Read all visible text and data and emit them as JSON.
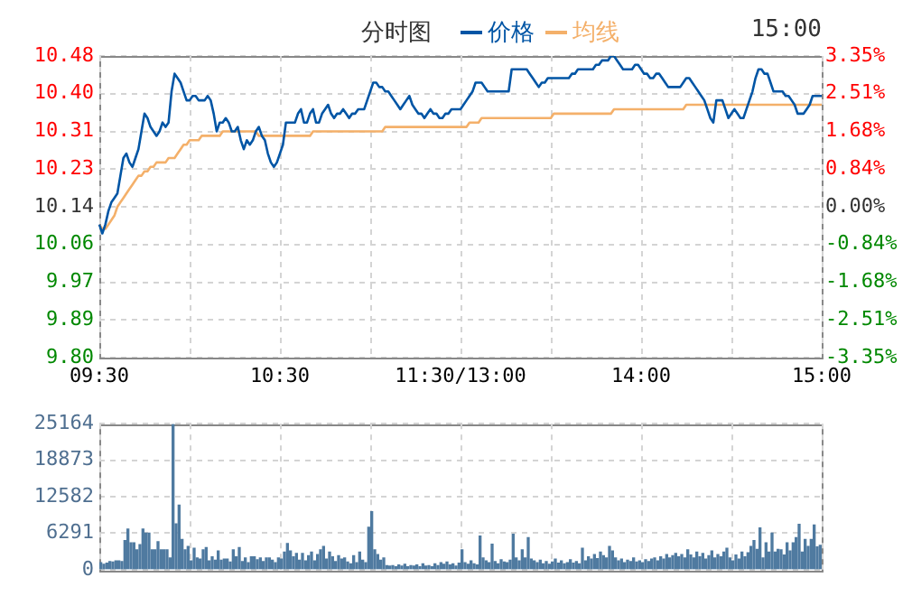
{
  "chart_data": [
    {
      "type": "line",
      "title": "分时图",
      "annotations": [
        "15:00"
      ],
      "legend": "top",
      "grid": true,
      "marker": "none",
      "line_style": "solid",
      "categories": [
        "09:30",
        null,
        null,
        null,
        null,
        null,
        null,
        null,
        null,
        null,
        null,
        null,
        null,
        null,
        null,
        null,
        null,
        null,
        null,
        null,
        null,
        null,
        null,
        null,
        null,
        null,
        null,
        null,
        null,
        null,
        null,
        null,
        null,
        null,
        null,
        null,
        null,
        null,
        null,
        null,
        null,
        null,
        null,
        null,
        null,
        null,
        null,
        null,
        null,
        null,
        null,
        null,
        null,
        null,
        null,
        null,
        null,
        null,
        null,
        null,
        "10:30",
        null,
        null,
        null,
        null,
        null,
        null,
        null,
        null,
        null,
        null,
        null,
        null,
        null,
        null,
        null,
        null,
        null,
        null,
        null,
        null,
        null,
        null,
        null,
        null,
        null,
        null,
        null,
        null,
        null,
        null,
        null,
        null,
        null,
        null,
        null,
        null,
        null,
        null,
        null,
        null,
        null,
        null,
        null,
        null,
        null,
        null,
        null,
        null,
        null,
        null,
        null,
        null,
        null,
        null,
        null,
        null,
        null,
        null,
        null,
        "11:30/13:00",
        null,
        null,
        null,
        null,
        null,
        null,
        null,
        null,
        null,
        null,
        null,
        null,
        null,
        null,
        null,
        null,
        null,
        null,
        null,
        null,
        null,
        null,
        null,
        null,
        null,
        null,
        null,
        null,
        null,
        null,
        null,
        null,
        null,
        null,
        null,
        null,
        null,
        null,
        null,
        null,
        null,
        null,
        null,
        null,
        null,
        null,
        null,
        null,
        null,
        null,
        null,
        null,
        null,
        null,
        null,
        null,
        null,
        null,
        null,
        "14:00",
        null,
        null,
        null,
        null,
        null,
        null,
        null,
        null,
        null,
        null,
        null,
        null,
        null,
        null,
        null,
        null,
        null,
        null,
        null,
        null,
        null,
        null,
        null,
        null,
        null,
        null,
        null,
        null,
        null,
        null,
        null,
        null,
        null,
        null,
        null,
        null,
        null,
        null,
        null,
        null,
        null,
        null,
        null,
        null,
        null,
        null,
        null,
        null,
        null,
        null,
        null,
        null,
        null,
        null,
        null,
        null,
        null,
        null,
        null,
        "15:00"
      ],
      "ylim": [
        9.8,
        10.48
      ],
      "yticks": [
        10.48,
        {
          "value": 10.395,
          "label": "10.40"
        },
        10.31,
        {
          "value": 10.225,
          "label": "10.23"
        },
        10.14,
        {
          "value": 10.055,
          "label": "10.06"
        },
        9.97,
        {
          "value": 9.885,
          "label": "9.89"
        },
        {
          "value": 9.8,
          "label": "9.80"
        }
      ],
      "y2lim": [
        -3.35,
        3.35
      ],
      "y2ticks": [
        {
          "value": 3.35,
          "label": "3.35%"
        },
        {
          "value": 2.5125,
          "label": "2.51%"
        },
        {
          "value": 1.675,
          "label": "1.68%"
        },
        {
          "value": 0.8375,
          "label": "0.84%"
        },
        {
          "value": 0,
          "label": "0.00%"
        },
        {
          "value": -0.8375,
          "label": "-0.84%"
        },
        {
          "value": -1.675,
          "label": "-1.68%"
        },
        {
          "value": -2.5125,
          "label": "-2.51%"
        },
        {
          "value": -3.35,
          "label": "-3.35%"
        }
      ],
      "series": [
        {
          "name": "价格",
          "color": "#0055a5",
          "values": [
            10.1,
            10.08,
            10.1,
            10.13,
            10.15,
            10.16,
            10.17,
            10.21,
            10.25,
            10.26,
            10.24,
            10.23,
            10.25,
            10.27,
            10.31,
            10.35,
            10.34,
            10.32,
            10.31,
            10.3,
            10.31,
            10.33,
            10.32,
            10.33,
            10.4,
            10.44,
            10.43,
            10.42,
            10.4,
            10.38,
            10.38,
            10.39,
            10.39,
            10.38,
            10.38,
            10.38,
            10.39,
            10.38,
            10.35,
            10.31,
            10.33,
            10.33,
            10.34,
            10.33,
            10.31,
            10.31,
            10.32,
            10.29,
            10.27,
            10.29,
            10.28,
            10.29,
            10.31,
            10.32,
            10.3,
            10.29,
            10.26,
            10.24,
            10.23,
            10.24,
            10.26,
            10.28,
            10.33,
            10.33,
            10.33,
            10.33,
            10.35,
            10.36,
            10.33,
            10.33,
            10.35,
            10.36,
            10.33,
            10.33,
            10.35,
            10.36,
            10.37,
            10.35,
            10.34,
            10.35,
            10.35,
            10.36,
            10.35,
            10.34,
            10.35,
            10.35,
            10.36,
            10.36,
            10.36,
            10.38,
            10.4,
            10.42,
            10.42,
            10.41,
            10.41,
            10.4,
            10.4,
            10.39,
            10.38,
            10.37,
            10.36,
            10.37,
            10.38,
            10.39,
            10.37,
            10.36,
            10.35,
            10.35,
            10.34,
            10.35,
            10.36,
            10.35,
            10.35,
            10.34,
            10.34,
            10.35,
            10.35,
            10.36,
            10.36,
            10.36,
            10.36,
            10.37,
            10.38,
            10.39,
            10.4,
            10.42,
            10.42,
            10.42,
            10.41,
            10.4,
            10.4,
            10.4,
            10.4,
            10.4,
            10.4,
            10.4,
            10.4,
            10.45,
            10.45,
            10.45,
            10.45,
            10.45,
            10.45,
            10.44,
            10.43,
            10.42,
            10.41,
            10.42,
            10.42,
            10.43,
            10.43,
            10.43,
            10.43,
            10.43,
            10.43,
            10.43,
            10.43,
            10.44,
            10.44,
            10.45,
            10.45,
            10.45,
            10.45,
            10.45,
            10.45,
            10.46,
            10.46,
            10.47,
            10.47,
            10.47,
            10.48,
            10.48,
            10.47,
            10.46,
            10.45,
            10.45,
            10.45,
            10.45,
            10.46,
            10.46,
            10.45,
            10.44,
            10.44,
            10.43,
            10.43,
            10.44,
            10.44,
            10.43,
            10.42,
            10.41,
            10.41,
            10.41,
            10.41,
            10.41,
            10.42,
            10.43,
            10.43,
            10.42,
            10.41,
            10.4,
            10.39,
            10.38,
            10.36,
            10.34,
            10.33,
            10.38,
            10.38,
            10.38,
            10.36,
            10.34,
            10.35,
            10.36,
            10.35,
            10.34,
            10.34,
            10.36,
            10.38,
            10.4,
            10.43,
            10.45,
            10.45,
            10.44,
            10.44,
            10.42,
            10.4,
            10.4,
            10.4,
            10.4,
            10.39,
            10.39,
            10.38,
            10.37,
            10.35,
            10.35,
            10.35,
            10.36,
            10.37,
            10.39,
            10.39,
            10.39,
            10.39
          ]
        },
        {
          "name": "均线",
          "color": "#f4b06a",
          "values": [
            10.1,
            10.09,
            10.09,
            10.1,
            10.11,
            10.12,
            10.14,
            10.15,
            10.16,
            10.17,
            10.18,
            10.19,
            10.2,
            10.21,
            10.21,
            10.22,
            10.22,
            10.23,
            10.23,
            10.24,
            10.24,
            10.24,
            10.24,
            10.25,
            10.25,
            10.25,
            10.26,
            10.27,
            10.28,
            10.28,
            10.29,
            10.29,
            10.29,
            10.29,
            10.3,
            10.3,
            10.3,
            10.3,
            10.3,
            10.3,
            10.3,
            10.31,
            10.31,
            10.31,
            10.31,
            10.31,
            10.31,
            10.31,
            10.31,
            10.31,
            10.31,
            10.31,
            10.31,
            10.3,
            10.3,
            10.3,
            10.3,
            10.3,
            10.3,
            10.3,
            10.3,
            10.3,
            10.3,
            10.3,
            10.3,
            10.3,
            10.3,
            10.3,
            10.3,
            10.3,
            10.3,
            10.31,
            10.31,
            10.31,
            10.31,
            10.31,
            10.31,
            10.31,
            10.31,
            10.31,
            10.31,
            10.31,
            10.31,
            10.31,
            10.31,
            10.31,
            10.31,
            10.31,
            10.31,
            10.31,
            10.31,
            10.31,
            10.31,
            10.31,
            10.31,
            10.32,
            10.32,
            10.32,
            10.32,
            10.32,
            10.32,
            10.32,
            10.32,
            10.32,
            10.32,
            10.32,
            10.32,
            10.32,
            10.32,
            10.32,
            10.32,
            10.32,
            10.32,
            10.32,
            10.32,
            10.32,
            10.32,
            10.32,
            10.32,
            10.32,
            10.32,
            10.32,
            10.32,
            10.33,
            10.33,
            10.33,
            10.33,
            10.34,
            10.34,
            10.34,
            10.34,
            10.34,
            10.34,
            10.34,
            10.34,
            10.34,
            10.34,
            10.34,
            10.34,
            10.34,
            10.34,
            10.34,
            10.34,
            10.34,
            10.34,
            10.34,
            10.34,
            10.34,
            10.34,
            10.34,
            10.34,
            10.35,
            10.35,
            10.35,
            10.35,
            10.35,
            10.35,
            10.35,
            10.35,
            10.35,
            10.35,
            10.35,
            10.35,
            10.35,
            10.35,
            10.35,
            10.35,
            10.35,
            10.35,
            10.35,
            10.35,
            10.36,
            10.36,
            10.36,
            10.36,
            10.36,
            10.36,
            10.36,
            10.36,
            10.36,
            10.36,
            10.36,
            10.36,
            10.36,
            10.36,
            10.36,
            10.36,
            10.36,
            10.36,
            10.36,
            10.36,
            10.36,
            10.36,
            10.36,
            10.36,
            10.37,
            10.37,
            10.37,
            10.37,
            10.37,
            10.37,
            10.37,
            10.37,
            10.37,
            10.37,
            10.37,
            10.37,
            10.37,
            10.37,
            10.37,
            10.37,
            10.37,
            10.37,
            10.37,
            10.37,
            10.37,
            10.37,
            10.37,
            10.37,
            10.37,
            10.37,
            10.37,
            10.37,
            10.37,
            10.37,
            10.37,
            10.37,
            10.37,
            10.37,
            10.37,
            10.37,
            10.37,
            10.37,
            10.37,
            10.37,
            10.37,
            10.37,
            10.37,
            10.37,
            10.37,
            10.37
          ]
        }
      ]
    },
    {
      "type": "bar",
      "color": "#4f7aa0",
      "grid": true,
      "tick_labels": "y",
      "categories": [
        null,
        null,
        null,
        null,
        null,
        null,
        null,
        null,
        null,
        null,
        null,
        null,
        null,
        null,
        null,
        null,
        null,
        null,
        null,
        null,
        null,
        null,
        null,
        null,
        null,
        null,
        null,
        null,
        null,
        null,
        null,
        null,
        null,
        null,
        null,
        null,
        null,
        null,
        null,
        null,
        null,
        null,
        null,
        null,
        null,
        null,
        null,
        null,
        null,
        null,
        null,
        null,
        null,
        null,
        null,
        null,
        null,
        null,
        null,
        null,
        null,
        null,
        null,
        null,
        null,
        null,
        null,
        null,
        null,
        null,
        null,
        null,
        null,
        null,
        null,
        null,
        null,
        null,
        null,
        null,
        null,
        null,
        null,
        null,
        null,
        null,
        null,
        null,
        null,
        null,
        null,
        null,
        null,
        null,
        null,
        null,
        null,
        null,
        null,
        null,
        null,
        null,
        null,
        null,
        null,
        null,
        null,
        null,
        null,
        null,
        null,
        null,
        null,
        null,
        null,
        null,
        null,
        null,
        null,
        null,
        null,
        null,
        null,
        null,
        null,
        null,
        null,
        null,
        null,
        null,
        null,
        null,
        null,
        null,
        null,
        null,
        null,
        null,
        null,
        null,
        null,
        null,
        null,
        null,
        null,
        null,
        null,
        null,
        null,
        null,
        null,
        null,
        null,
        null,
        null,
        null,
        null,
        null,
        null,
        null,
        null,
        null,
        null,
        null,
        null,
        null,
        null,
        null,
        null,
        null,
        null,
        null,
        null,
        null,
        null,
        null,
        null,
        null,
        null,
        null,
        null,
        null,
        null,
        null,
        null,
        null,
        null,
        null,
        null,
        null,
        null,
        null,
        null,
        null,
        null,
        null,
        null,
        null,
        null,
        null,
        null,
        null,
        null,
        null,
        null,
        null,
        null,
        null,
        null,
        null,
        null,
        null,
        null,
        null,
        null,
        null,
        null,
        null,
        null,
        null,
        null,
        null,
        null,
        null,
        null,
        null,
        null,
        null,
        null,
        null,
        null,
        null,
        null,
        null,
        null,
        null,
        null,
        null,
        null,
        null
      ],
      "ylim": [
        0,
        25164
      ],
      "yticks": [
        0,
        6291,
        12582,
        18873,
        25164
      ],
      "values": [
        1200,
        900,
        1100,
        1400,
        1300,
        1500,
        1500,
        1400,
        5000,
        7000,
        4600,
        4600,
        3400,
        4300,
        7000,
        6300,
        6300,
        3400,
        3400,
        4800,
        3400,
        3400,
        3400,
        2000,
        25000,
        7900,
        11100,
        5200,
        3400,
        4000,
        1500,
        3700,
        2000,
        1800,
        3400,
        3800,
        1500,
        2200,
        1600,
        3200,
        1600,
        1800,
        1800,
        1300,
        3400,
        2200,
        3800,
        1400,
        2000,
        1200,
        2200,
        2200,
        1700,
        2000,
        1400,
        2000,
        2000,
        1600,
        1200,
        2000,
        1800,
        3000,
        4500,
        3200,
        2200,
        2800,
        1600,
        2800,
        1500,
        2400,
        3000,
        1500,
        2600,
        3400,
        4000,
        1800,
        3000,
        2200,
        1400,
        2400,
        1800,
        2000,
        1300,
        1000,
        2400,
        1200,
        3000,
        1600,
        1200,
        7300,
        10000,
        3400,
        2600,
        1600,
        2000,
        700,
        600,
        700,
        500,
        800,
        600,
        900,
        500,
        700,
        600,
        800,
        500,
        1000,
        600,
        700,
        500,
        1000,
        700,
        1200,
        900,
        1300,
        800,
        1000,
        600,
        1100,
        3400,
        1200,
        900,
        1500,
        1000,
        800,
        5800,
        2000,
        1500,
        1200,
        4400,
        1400,
        1000,
        1700,
        1300,
        1200,
        1600,
        6100,
        2000,
        1500,
        3400,
        2000,
        5500,
        1800,
        1500,
        1200,
        1600,
        1000,
        1400,
        900,
        1300,
        1800,
        1100,
        1500,
        1000,
        1200,
        1700,
        1100,
        1400,
        1000,
        3700,
        1500,
        2200,
        1800,
        2600,
        1900,
        3000,
        2400,
        2000,
        4000,
        3200,
        2000,
        1500,
        1800,
        1200,
        1600,
        1400,
        2000,
        1300,
        1500,
        1200,
        1700,
        1400,
        1800,
        2000,
        1500,
        2200,
        1800,
        2600,
        2000,
        2400,
        2800,
        2200,
        2600,
        2000,
        3400,
        2500,
        2000,
        3000,
        2200,
        2800,
        1800,
        2400,
        3200,
        2000,
        2600,
        2200,
        3000,
        3700,
        2000,
        1500,
        2500,
        1800,
        3000,
        2200,
        2900,
        4000,
        5000,
        3500,
        7200,
        2000,
        4600,
        3000,
        6300,
        3000,
        3500,
        3400,
        2500,
        4600,
        3200,
        4600,
        5500,
        7800,
        3000,
        5200,
        4000,
        5200,
        7700,
        3900,
        4200
      ]
    }
  ]
}
